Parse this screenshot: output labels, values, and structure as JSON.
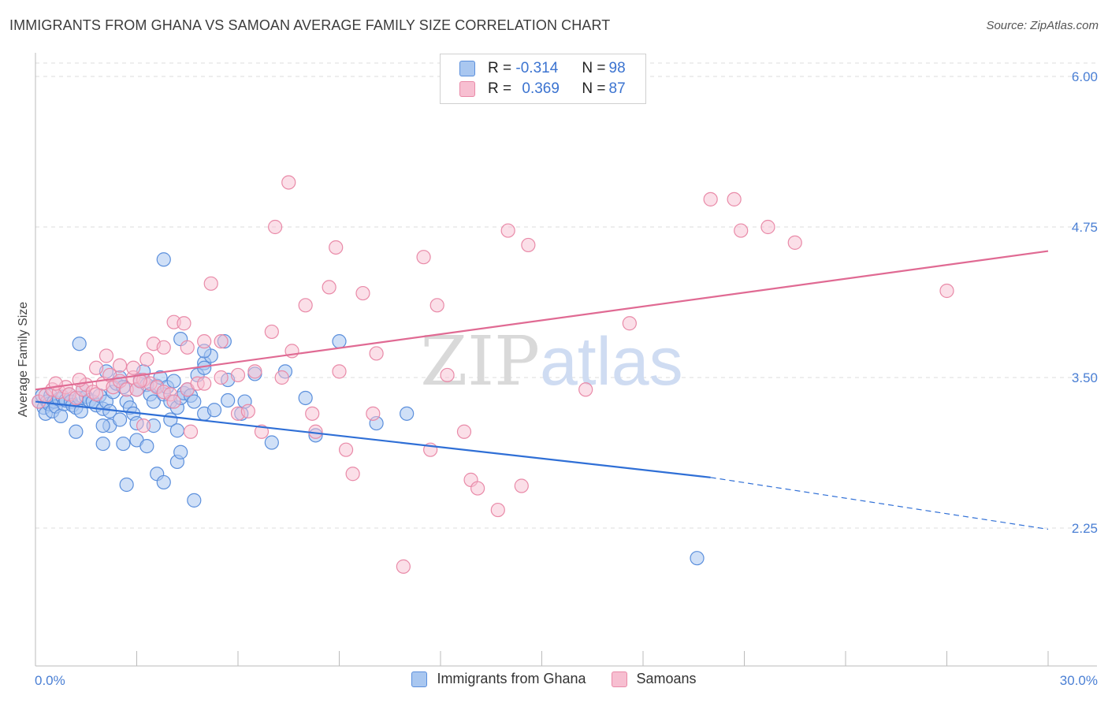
{
  "header": {
    "title": "IMMIGRANTS FROM GHANA VS SAMOAN AVERAGE FAMILY SIZE CORRELATION CHART",
    "source": "Source: ZipAtlas.com"
  },
  "watermark": {
    "part1": "ZIP",
    "part2": "atlas"
  },
  "legend_top": {
    "rows": [
      {
        "r_label": "R =",
        "r_value": "-0.314",
        "n_label": "N =",
        "n_value": "98"
      },
      {
        "r_label": "R =",
        "r_value": "0.369",
        "n_label": "N =",
        "n_value": "87"
      }
    ]
  },
  "legend_bottom": {
    "items": [
      {
        "label": "Immigrants from Ghana"
      },
      {
        "label": "Samoans"
      }
    ]
  },
  "colors": {
    "ghana_fill": "#a9c7f0",
    "ghana_stroke": "#5b8fdc",
    "ghana_line": "#2f6fd6",
    "samoan_fill": "#f7bfd1",
    "samoan_stroke": "#e98aa8",
    "samoan_line": "#e06a93",
    "tick_label": "#4a7fd4",
    "grid": "#dcdcdc"
  },
  "chart_data": {
    "type": "scatter",
    "title": "IMMIGRANTS FROM GHANA VS SAMOAN AVERAGE FAMILY SIZE CORRELATION CHART",
    "xlabel": "",
    "ylabel": "Average Family Size",
    "xlim": [
      0,
      30
    ],
    "ylim": [
      1.25,
      6.3
    ],
    "x_tick_labels": [
      "0.0%",
      "30.0%"
    ],
    "y_ticks": [
      2.25,
      3.5,
      4.75,
      6.0
    ],
    "y_tick_labels": [
      "2.25",
      "3.50",
      "4.75",
      "6.00"
    ],
    "grid": "horizontal dashed",
    "legend_placement": "top-center and bottom",
    "series": [
      {
        "name": "Immigrants from Ghana",
        "trend": {
          "x0": 0,
          "y0": 3.3,
          "x1": 20,
          "y1": 2.67,
          "dashed_to_x": 30,
          "dashed_to_y": 2.24
        },
        "points": [
          [
            0.1,
            3.3
          ],
          [
            0.2,
            3.35
          ],
          [
            0.25,
            3.25
          ],
          [
            0.3,
            3.2
          ],
          [
            0.35,
            3.3
          ],
          [
            0.4,
            3.28
          ],
          [
            0.45,
            3.35
          ],
          [
            0.5,
            3.22
          ],
          [
            0.55,
            3.3
          ],
          [
            0.6,
            3.26
          ],
          [
            0.7,
            3.32
          ],
          [
            0.75,
            3.18
          ],
          [
            0.8,
            3.34
          ],
          [
            0.85,
            3.28
          ],
          [
            0.9,
            3.31
          ],
          [
            1.0,
            3.36
          ],
          [
            1.05,
            3.3
          ],
          [
            1.1,
            3.27
          ],
          [
            1.2,
            3.25
          ],
          [
            1.3,
            3.33
          ],
          [
            1.35,
            3.22
          ],
          [
            1.4,
            3.4
          ],
          [
            1.5,
            3.34
          ],
          [
            1.6,
            3.31
          ],
          [
            1.7,
            3.3
          ],
          [
            1.8,
            3.27
          ],
          [
            1.9,
            3.35
          ],
          [
            2.0,
            3.24
          ],
          [
            2.1,
            3.3
          ],
          [
            2.2,
            3.22
          ],
          [
            2.3,
            3.38
          ],
          [
            2.4,
            3.45
          ],
          [
            2.5,
            3.5
          ],
          [
            2.6,
            3.42
          ],
          [
            2.7,
            3.3
          ],
          [
            2.8,
            3.25
          ],
          [
            2.9,
            3.2
          ],
          [
            3.0,
            3.4
          ],
          [
            3.1,
            3.48
          ],
          [
            3.2,
            3.55
          ],
          [
            3.3,
            3.44
          ],
          [
            3.4,
            3.36
          ],
          [
            3.5,
            3.3
          ],
          [
            3.6,
            3.43
          ],
          [
            3.7,
            3.5
          ],
          [
            3.8,
            3.36
          ],
          [
            3.9,
            3.42
          ],
          [
            4.0,
            3.3
          ],
          [
            4.1,
            3.47
          ],
          [
            4.2,
            3.25
          ],
          [
            4.3,
            3.33
          ],
          [
            4.4,
            3.37
          ],
          [
            4.5,
            3.4
          ],
          [
            4.6,
            3.35
          ],
          [
            4.7,
            3.3
          ],
          [
            4.8,
            3.52
          ],
          [
            1.3,
            3.78
          ],
          [
            2.1,
            3.55
          ],
          [
            2.2,
            3.1
          ],
          [
            1.2,
            3.05
          ],
          [
            2.0,
            3.1
          ],
          [
            2.5,
            3.15
          ],
          [
            3.0,
            3.12
          ],
          [
            3.5,
            3.1
          ],
          [
            4.0,
            3.15
          ],
          [
            4.2,
            3.06
          ],
          [
            2.0,
            2.95
          ],
          [
            2.6,
            2.95
          ],
          [
            3.0,
            2.98
          ],
          [
            3.3,
            2.93
          ],
          [
            3.6,
            2.7
          ],
          [
            4.2,
            2.8
          ],
          [
            4.3,
            2.88
          ],
          [
            3.8,
            2.63
          ],
          [
            2.7,
            2.61
          ],
          [
            4.7,
            2.48
          ],
          [
            5.0,
            3.2
          ],
          [
            5.3,
            3.23
          ],
          [
            5.7,
            3.48
          ],
          [
            5.0,
            3.62
          ],
          [
            5.2,
            3.68
          ],
          [
            5.0,
            3.58
          ],
          [
            4.3,
            3.82
          ],
          [
            5.0,
            3.72
          ],
          [
            5.7,
            3.31
          ],
          [
            6.1,
            3.2
          ],
          [
            6.5,
            3.53
          ],
          [
            3.8,
            4.48
          ],
          [
            5.6,
            3.8
          ],
          [
            6.2,
            3.3
          ],
          [
            7.0,
            2.96
          ],
          [
            8.3,
            3.02
          ],
          [
            8.0,
            3.33
          ],
          [
            7.4,
            3.55
          ],
          [
            9.0,
            3.8
          ],
          [
            10.1,
            3.12
          ],
          [
            11.0,
            3.2
          ],
          [
            19.6,
            2.0
          ]
        ]
      },
      {
        "name": "Samoans",
        "trend": {
          "x0": 0,
          "y0": 3.4,
          "x1": 30,
          "y1": 4.55
        },
        "points": [
          [
            0.1,
            3.3
          ],
          [
            0.3,
            3.35
          ],
          [
            0.5,
            3.4
          ],
          [
            0.7,
            3.38
          ],
          [
            0.9,
            3.42
          ],
          [
            1.0,
            3.36
          ],
          [
            1.2,
            3.33
          ],
          [
            1.4,
            3.4
          ],
          [
            1.5,
            3.44
          ],
          [
            1.7,
            3.38
          ],
          [
            1.8,
            3.36
          ],
          [
            2.0,
            3.45
          ],
          [
            2.2,
            3.52
          ],
          [
            2.3,
            3.42
          ],
          [
            2.5,
            3.47
          ],
          [
            2.7,
            3.4
          ],
          [
            2.9,
            3.5
          ],
          [
            3.0,
            3.4
          ],
          [
            3.2,
            3.48
          ],
          [
            3.4,
            3.45
          ],
          [
            3.6,
            3.42
          ],
          [
            3.8,
            3.38
          ],
          [
            4.0,
            3.36
          ],
          [
            4.1,
            3.3
          ],
          [
            4.5,
            3.4
          ],
          [
            4.8,
            3.45
          ],
          [
            5.0,
            3.45
          ],
          [
            5.5,
            3.5
          ],
          [
            6.0,
            3.52
          ],
          [
            6.5,
            3.55
          ],
          [
            0.6,
            3.45
          ],
          [
            1.3,
            3.48
          ],
          [
            1.8,
            3.58
          ],
          [
            2.1,
            3.68
          ],
          [
            2.5,
            3.6
          ],
          [
            2.9,
            3.58
          ],
          [
            3.1,
            3.47
          ],
          [
            3.3,
            3.65
          ],
          [
            3.5,
            3.78
          ],
          [
            3.8,
            3.75
          ],
          [
            4.1,
            3.96
          ],
          [
            4.4,
            3.95
          ],
          [
            4.5,
            3.75
          ],
          [
            5.2,
            4.28
          ],
          [
            5.5,
            3.8
          ],
          [
            6.0,
            3.2
          ],
          [
            6.3,
            3.22
          ],
          [
            6.7,
            3.05
          ],
          [
            7.0,
            3.88
          ],
          [
            7.1,
            4.75
          ],
          [
            7.3,
            3.5
          ],
          [
            7.5,
            5.12
          ],
          [
            7.6,
            3.72
          ],
          [
            8.0,
            4.1
          ],
          [
            8.2,
            3.2
          ],
          [
            8.3,
            3.05
          ],
          [
            8.7,
            4.25
          ],
          [
            8.9,
            4.58
          ],
          [
            9.0,
            3.55
          ],
          [
            9.2,
            2.9
          ],
          [
            9.4,
            2.7
          ],
          [
            9.7,
            4.2
          ],
          [
            10.0,
            3.2
          ],
          [
            10.1,
            3.7
          ],
          [
            10.9,
            1.93
          ],
          [
            11.5,
            4.5
          ],
          [
            11.9,
            4.1
          ],
          [
            11.7,
            2.9
          ],
          [
            12.2,
            3.52
          ],
          [
            12.7,
            3.05
          ],
          [
            12.9,
            2.65
          ],
          [
            13.1,
            2.58
          ],
          [
            13.7,
            2.4
          ],
          [
            14.0,
            4.72
          ],
          [
            14.4,
            2.6
          ],
          [
            14.6,
            4.6
          ],
          [
            16.3,
            3.4
          ],
          [
            17.6,
            3.95
          ],
          [
            20.0,
            4.98
          ],
          [
            20.7,
            4.98
          ],
          [
            20.9,
            4.72
          ],
          [
            21.7,
            4.75
          ],
          [
            22.5,
            4.62
          ],
          [
            27.0,
            4.22
          ],
          [
            3.2,
            3.1
          ],
          [
            4.6,
            3.05
          ],
          [
            5.0,
            3.8
          ]
        ]
      }
    ]
  }
}
